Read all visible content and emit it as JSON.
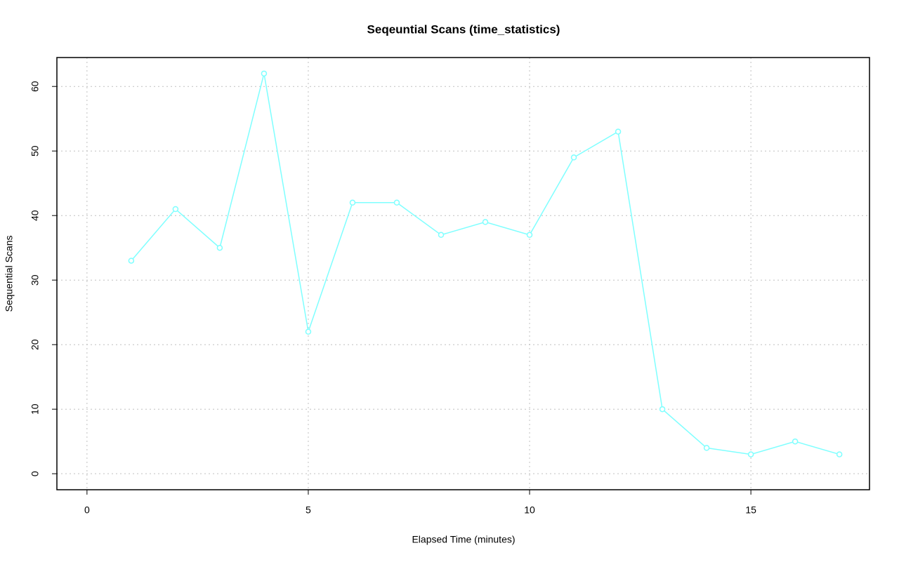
{
  "chart_data": {
    "type": "line",
    "title": "Seqeuntial Scans (time_statistics)",
    "x_label": "Elapsed Time (minutes)",
    "y_label": "Sequential Scans",
    "x": [
      1,
      2,
      3,
      4,
      5,
      6,
      7,
      8,
      9,
      10,
      11,
      12,
      13,
      14,
      15,
      16,
      17
    ],
    "series": [
      {
        "name": "Sequential Scans",
        "color": "#7fffff",
        "values": [
          33,
          41,
          35,
          62,
          22,
          42,
          42,
          37,
          39,
          37,
          49,
          53,
          10,
          4,
          3,
          5,
          3
        ]
      }
    ],
    "xlim": [
      -0.68,
      17.68
    ],
    "xticks": [
      0,
      5,
      10,
      15
    ],
    "ylim": [
      -2.48,
      64.48
    ],
    "yticks": [
      0,
      10,
      20,
      30,
      40,
      50,
      60
    ],
    "grid": true
  }
}
